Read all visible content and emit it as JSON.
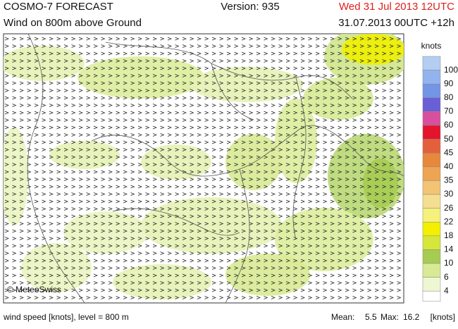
{
  "header": {
    "title": "COSMO-7 FORECAST",
    "subtitle": "Wind on 800m above Ground",
    "version": "Version: 935",
    "valid_time": "Wed 31 Jul 2013 12UTC",
    "run_time": "31.07.2013 00UTC +12h"
  },
  "map": {
    "credit": "© MeteoSwiss"
  },
  "legend": {
    "title": "knots",
    "items": [
      {
        "label": 100,
        "color": "#b4cdf2"
      },
      {
        "label": 90,
        "color": "#93b3ee"
      },
      {
        "label": 80,
        "color": "#7494e6"
      },
      {
        "label": 70,
        "color": "#6a5fd6"
      },
      {
        "label": 60,
        "color": "#d7509e"
      },
      {
        "label": 50,
        "color": "#e3142c"
      },
      {
        "label": 45,
        "color": "#e4603c"
      },
      {
        "label": 40,
        "color": "#e8883c"
      },
      {
        "label": 35,
        "color": "#eea452"
      },
      {
        "label": 30,
        "color": "#f2c474"
      },
      {
        "label": 26,
        "color": "#f6de90"
      },
      {
        "label": 22,
        "color": "#f6f07c"
      },
      {
        "label": 18,
        "color": "#f2f000"
      },
      {
        "label": 14,
        "color": "#d6e63a"
      },
      {
        "label": 10,
        "color": "#a6cc52"
      },
      {
        "label": 6,
        "color": "#d8ea94"
      },
      {
        "label": 4,
        "color": "#eff7d2"
      }
    ]
  },
  "footer": {
    "description": "wind speed [knots], level = 800 m",
    "mean_label": "Mean:",
    "mean_value": 5.5,
    "max_label": "Max:",
    "max_value": 16.2,
    "unit": "[knots]"
  }
}
